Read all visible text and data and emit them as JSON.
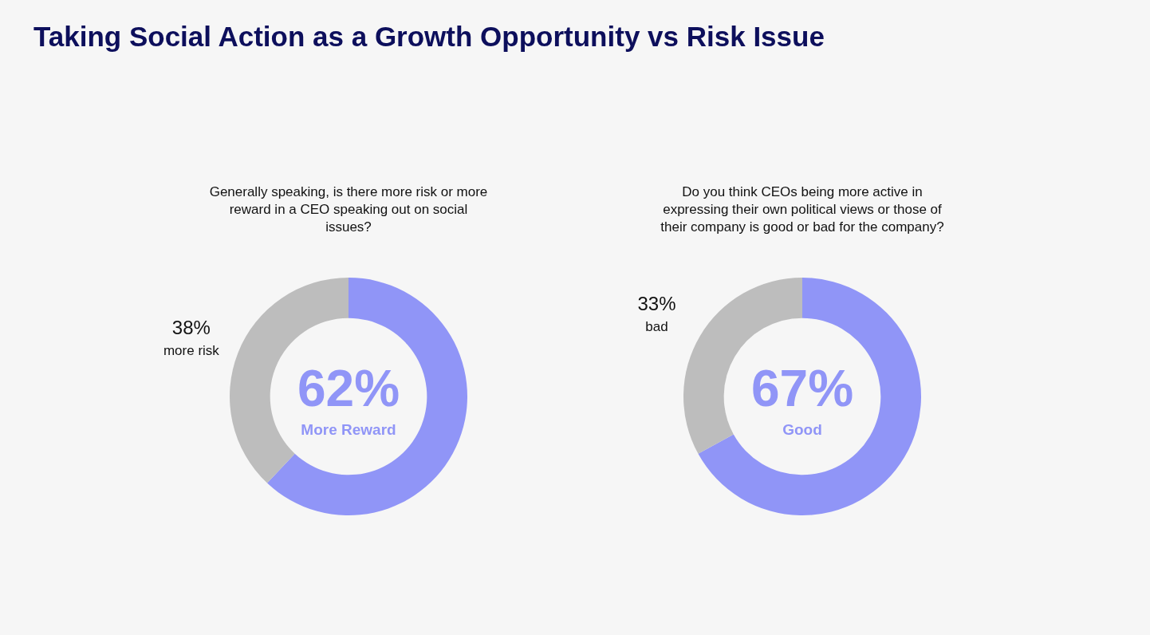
{
  "chart_data": [
    {
      "type": "donut",
      "title": "Taking Social Action as a Growth Opportunity vs Risk Issue",
      "subtitle": "Generally speaking, is there more risk or more reward in a CEO speaking out on social issues?",
      "categories": [
        "More Reward",
        "more risk"
      ],
      "values": [
        62,
        38
      ],
      "colors": [
        "#9095f7",
        "#bdbdbd"
      ],
      "value_labels": [
        "62%",
        "38%"
      ],
      "legend": false
    },
    {
      "type": "donut",
      "subtitle": "Do you think CEOs being more active in expressing their own political views or those of their company is good or bad for the company?",
      "categories": [
        "Good",
        "bad"
      ],
      "values": [
        67,
        33
      ],
      "colors": [
        "#9095f7",
        "#bdbdbd"
      ],
      "value_labels": [
        "67%",
        "33%"
      ],
      "legend": false
    }
  ]
}
